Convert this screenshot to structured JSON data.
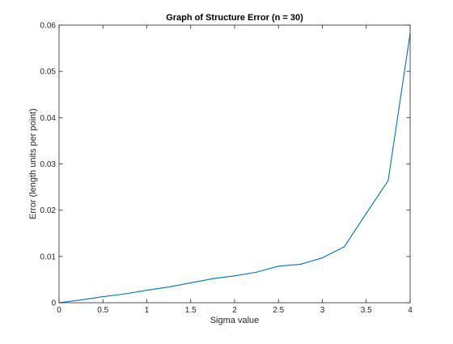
{
  "chart_data": {
    "type": "line",
    "title": "Graph of Structure Error (n = 30)",
    "xlabel": "Sigma value",
    "ylabel": "Error (length units per point)",
    "xlim": [
      0,
      4
    ],
    "ylim": [
      0,
      0.06
    ],
    "xticks": [
      0,
      0.5,
      1,
      1.5,
      2,
      2.5,
      3,
      3.5,
      4
    ],
    "xtick_labels": [
      "0",
      "0.5",
      "1",
      "1.5",
      "2",
      "2.5",
      "3",
      "3.5",
      "4"
    ],
    "yticks": [
      0,
      0.01,
      0.02,
      0.03,
      0.04,
      0.05,
      0.06
    ],
    "ytick_labels": [
      "0",
      "0.01",
      "0.02",
      "0.03",
      "0.04",
      "0.05",
      "0.06"
    ],
    "grid": false,
    "series": [
      {
        "color": "#0072bd",
        "x": [
          0,
          0.25,
          0.5,
          0.75,
          1,
          1.25,
          1.5,
          1.75,
          2,
          2.25,
          2.5,
          2.75,
          3,
          3.25,
          3.5,
          3.75,
          4
        ],
        "y": [
          0,
          0.0006,
          0.0013,
          0.0019,
          0.0027,
          0.0034,
          0.0043,
          0.0052,
          0.0058,
          0.0066,
          0.0079,
          0.0083,
          0.0097,
          0.0121,
          0.0193,
          0.0264,
          0.0582
        ]
      }
    ]
  }
}
